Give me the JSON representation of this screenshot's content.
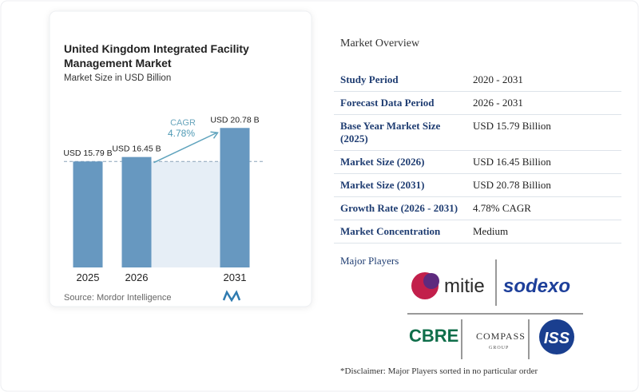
{
  "chart_data": {
    "type": "bar",
    "title": [
      "United Kingdom Integrated Facility",
      "Management Market"
    ],
    "subtitle": "Market Size in USD Billion",
    "categories": [
      "2025",
      "2026",
      "2031"
    ],
    "values": [
      15.79,
      16.45,
      20.78
    ],
    "value_labels": [
      "USD 15.79 B",
      "USD 16.45 B",
      "USD 20.78 B"
    ],
    "color": "#6798c0",
    "ylim": [
      0,
      22
    ],
    "annotations": [
      "CAGR",
      "4.78%"
    ],
    "source": "Source: Mordor Intelligence"
  },
  "overview": {
    "title": "Market Overview",
    "rows": [
      [
        "Study Period",
        "2020 - 2031"
      ],
      [
        "Forecast Data Period",
        "2026 - 2031"
      ],
      [
        "Base Year Market Size (2025)",
        "USD 15.79 Billion"
      ],
      [
        "Market Size (2026)",
        "USD 16.45 Billion"
      ],
      [
        "Market Size (2031)",
        "USD 20.78 Billion"
      ],
      [
        "Growth Rate (2026 - 2031)",
        "4.78% CAGR"
      ],
      [
        "Market Concentration",
        "Medium"
      ]
    ]
  },
  "players": {
    "title": "Major Players",
    "logos": [
      "mitie",
      "sodexo",
      "CBRE",
      "COMPASS",
      "GROUP",
      "ISS"
    ]
  },
  "disclaimer": "*Disclaimer: Major Players sorted in no particular order"
}
